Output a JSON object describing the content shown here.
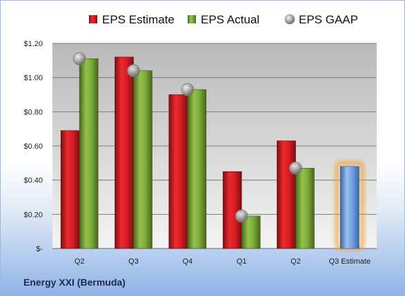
{
  "company": "Energy XXI (Bermuda)",
  "colors": {
    "estimate": "#c8161d",
    "actual": "#6f9a2e",
    "gaap": "#a9a9a9",
    "forecast": "#5b8fd1",
    "forecast_glow": "#f2a23a"
  },
  "chart_data": {
    "type": "bar",
    "categories": [
      "Q2",
      "Q3",
      "Q4",
      "Q1",
      "Q2",
      "Q3 Estimate"
    ],
    "series": [
      {
        "name": "EPS Estimate",
        "values": [
          0.69,
          1.12,
          0.9,
          0.45,
          0.63,
          null
        ]
      },
      {
        "name": "EPS Actual",
        "values": [
          1.11,
          1.04,
          0.93,
          0.19,
          0.47,
          null
        ]
      },
      {
        "name": "EPS GAAP",
        "values": [
          1.11,
          1.04,
          0.93,
          0.19,
          0.47,
          null
        ]
      }
    ],
    "forecast": {
      "category": "Q3 Estimate",
      "value": 0.48
    },
    "y_ticks": [
      {
        "value": 0,
        "label": "$-"
      },
      {
        "value": 0.2,
        "label": "$0.20"
      },
      {
        "value": 0.4,
        "label": "$0.40"
      },
      {
        "value": 0.6,
        "label": "$0.60"
      },
      {
        "value": 0.8,
        "label": "$0.80"
      },
      {
        "value": 1.0,
        "label": "$1.00"
      },
      {
        "value": 1.2,
        "label": "$1.20"
      }
    ],
    "ylim": [
      0,
      1.2
    ],
    "grid": true,
    "legend_position": "top"
  }
}
